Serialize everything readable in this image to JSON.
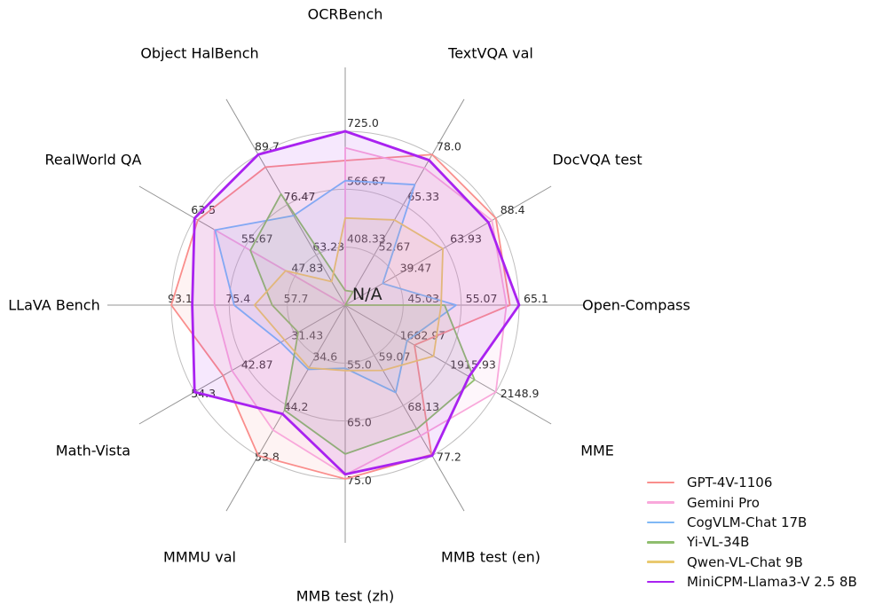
{
  "chart_data": {
    "type": "radar",
    "title": "",
    "center_label": "N/A",
    "grid": {
      "rings": 3,
      "ring_color": "#c0bfbf",
      "spoke_color": "#949494"
    },
    "legend_position": "bottom-right",
    "axes": [
      {
        "label": "OCRBench",
        "min": 250,
        "max": 725,
        "ticks": [
          "408.33",
          "566.67",
          "725.0"
        ]
      },
      {
        "label": "TextVQA val",
        "min": 40,
        "max": 78,
        "ticks": [
          "52.67",
          "65.33",
          "78.0"
        ]
      },
      {
        "label": "DocVQA test",
        "min": 15,
        "max": 88.4,
        "ticks": [
          "39.47",
          "63.93",
          "88.4"
        ]
      },
      {
        "label": "Open-Compass",
        "min": 35,
        "max": 65.1,
        "ticks": [
          "45.03",
          "55.07",
          "65.1"
        ]
      },
      {
        "label": "MME",
        "min": 1450,
        "max": 2148.9,
        "ticks": [
          "1682.97",
          "1915.93",
          "2148.9"
        ]
      },
      {
        "label": "MMB test (en)",
        "min": 50,
        "max": 77.2,
        "ticks": [
          "59.07",
          "68.13",
          "77.2"
        ]
      },
      {
        "label": "MMB test (zh)",
        "min": 45,
        "max": 75,
        "ticks": [
          "55.0",
          "65.0",
          "75.0"
        ]
      },
      {
        "label": "MMMU val",
        "min": 25,
        "max": 53.8,
        "ticks": [
          "34.6",
          "44.2",
          "53.8"
        ]
      },
      {
        "label": "Math-Vista",
        "min": 20,
        "max": 54.3,
        "ticks": [
          "31.43",
          "42.87",
          "54.3"
        ]
      },
      {
        "label": "LLaVA Bench",
        "min": 40,
        "max": 93.1,
        "ticks": [
          "57.7",
          "75.4",
          "93.1"
        ]
      },
      {
        "label": "RealWorld QA",
        "min": 40,
        "max": 63.5,
        "ticks": [
          "47.83",
          "55.67",
          "63.5"
        ]
      },
      {
        "label": "Object HalBench",
        "min": 50,
        "max": 89.7,
        "ticks": [
          "63.23",
          "76.47",
          "89.7"
        ]
      }
    ],
    "series": [
      {
        "name": "GPT-4V-1106",
        "color": "#FA8E8C",
        "line_width": 1.8,
        "values": [
          645,
          78.0,
          88.4,
          63.5,
          1771.5,
          77.0,
          75.0,
          53.8,
          47.8,
          93.1,
          63.0,
          86.4
        ]
      },
      {
        "name": "Gemini Pro",
        "color": "#F9A8DB",
        "line_width": 1.8,
        "values": [
          680,
          74.6,
          86.5,
          62.9,
          2148.9,
          73.6,
          74.3,
          48.9,
          45.8,
          79.9,
          60.4,
          null
        ]
      },
      {
        "name": "CogVLM-Chat 17B",
        "color": "#7FB8F5",
        "line_width": 1.8,
        "values": [
          590,
          70.4,
          33.3,
          54.2,
          1736.6,
          65.8,
          55.9,
          37.3,
          34.7,
          73.9,
          60.3,
          73.6
        ]
      },
      {
        "name": "Yi-VL-34B",
        "color": "#8FBE6E",
        "line_width": 1.8,
        "values": [
          290,
          43.4,
          null,
          52.2,
          2050.2,
          72.4,
          70.7,
          45.1,
          30.7,
          62.3,
          54.8,
          79.3
        ]
      },
      {
        "name": "Qwen-VL-Chat 9B",
        "color": "#E9C96F",
        "line_width": 1.8,
        "values": [
          488,
          61.5,
          62.6,
          51.6,
          1860.0,
          61.8,
          56.3,
          37.0,
          33.8,
          67.7,
          49.3,
          56.2
        ]
      },
      {
        "name": "MiniCPM-Llama3-V 2.5 8B",
        "color": "#A922F0",
        "line_width": 2.8,
        "values": [
          725,
          76.6,
          84.8,
          65.1,
          2024.6,
          77.2,
          74.2,
          45.8,
          54.3,
          86.7,
          63.5,
          89.7
        ]
      }
    ]
  }
}
